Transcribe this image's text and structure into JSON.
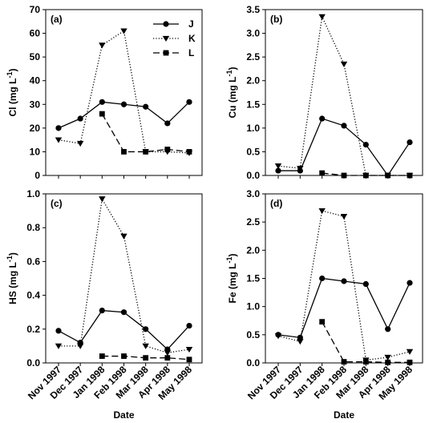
{
  "chart_data": [
    {
      "type": "line",
      "panel_label": "(a)",
      "ylabel_main": "Cl (mg L",
      "ylabel_sup": "-1",
      "ylabel_end": ")",
      "xlabel": "",
      "ylim": [
        0,
        70
      ],
      "yticks": [
        0,
        10,
        20,
        30,
        40,
        50,
        60,
        70
      ],
      "ytick_labels": [
        "0",
        "10",
        "20",
        "30",
        "40",
        "50",
        "60",
        "70"
      ],
      "show_xtick_labels": false,
      "legend": true,
      "legend_position": "top-right",
      "categories": [
        "Nov 1997",
        "Dec 1997",
        "Jan 1998",
        "Feb 1998",
        "Mar 1998",
        "Apr 1998",
        "May 1998"
      ],
      "series": [
        {
          "name": "J",
          "marker": "circle",
          "style": "solid",
          "values": [
            20,
            24,
            31,
            30,
            29,
            22,
            31
          ]
        },
        {
          "name": "K",
          "marker": "triangle-down",
          "style": "dotted",
          "values": [
            15,
            13.5,
            55,
            61,
            10,
            10,
            9.5
          ]
        },
        {
          "name": "L",
          "marker": "square",
          "style": "dashed",
          "values": [
            null,
            null,
            26,
            10,
            10,
            11,
            10
          ]
        }
      ]
    },
    {
      "type": "line",
      "panel_label": "(b)",
      "ylabel_main": "Cu (mg L",
      "ylabel_sup": "-1",
      "ylabel_end": ")",
      "xlabel": "",
      "ylim": [
        0,
        3.5
      ],
      "yticks": [
        0,
        0.5,
        1.0,
        1.5,
        2.0,
        2.5,
        3.0,
        3.5
      ],
      "ytick_labels": [
        "0.0",
        "0.5",
        "1.0",
        "1.5",
        "2.0",
        "2.5",
        "3.0",
        "3.5"
      ],
      "show_xtick_labels": false,
      "legend": false,
      "categories": [
        "Nov 1997",
        "Dec 1997",
        "Jan 1998",
        "Feb 1998",
        "Mar 1998",
        "Apr 1998",
        "May 1998"
      ],
      "series": [
        {
          "name": "J",
          "marker": "circle",
          "style": "solid",
          "values": [
            0.1,
            0.1,
            1.2,
            1.05,
            0.65,
            0.0,
            0.7
          ]
        },
        {
          "name": "K",
          "marker": "triangle-down",
          "style": "dotted",
          "values": [
            0.2,
            0.15,
            3.35,
            2.35,
            0.0,
            0.0,
            0.0
          ]
        },
        {
          "name": "L",
          "marker": "square",
          "style": "dashed",
          "values": [
            null,
            null,
            0.05,
            0.0,
            0.0,
            0.0,
            0.0
          ]
        }
      ]
    },
    {
      "type": "line",
      "panel_label": "(c)",
      "ylabel_main": "HS (mg L",
      "ylabel_sup": "-1",
      "ylabel_end": ")",
      "xlabel": "Date",
      "ylim": [
        0,
        1.0
      ],
      "yticks": [
        0,
        0.2,
        0.4,
        0.6,
        0.8,
        1.0
      ],
      "ytick_labels": [
        "0.0",
        "0.2",
        "0.4",
        "0.6",
        "0.8",
        "1.0"
      ],
      "show_xtick_labels": true,
      "legend": false,
      "categories": [
        "Nov 1997",
        "Dec 1997",
        "Jan 1998",
        "Feb 1998",
        "Mar 1998",
        "Apr 1998",
        "May 1998"
      ],
      "series": [
        {
          "name": "J",
          "marker": "circle",
          "style": "solid",
          "values": [
            0.19,
            0.12,
            0.31,
            0.3,
            0.2,
            0.08,
            0.22
          ]
        },
        {
          "name": "K",
          "marker": "triangle-down",
          "style": "dotted",
          "values": [
            0.1,
            0.1,
            0.97,
            0.75,
            0.1,
            0.06,
            0.08
          ]
        },
        {
          "name": "L",
          "marker": "square",
          "style": "dashed",
          "values": [
            null,
            null,
            0.04,
            0.04,
            0.03,
            0.03,
            0.02
          ]
        }
      ]
    },
    {
      "type": "line",
      "panel_label": "(d)",
      "ylabel_main": "Fe (mg L",
      "ylabel_sup": "-1",
      "ylabel_end": ")",
      "xlabel": "Date",
      "ylim": [
        0,
        3.0
      ],
      "yticks": [
        0,
        0.5,
        1.0,
        1.5,
        2.0,
        2.5,
        3.0
      ],
      "ytick_labels": [
        "0.0",
        "0.5",
        "1.0",
        "1.5",
        "2.0",
        "2.5",
        "3.0"
      ],
      "show_xtick_labels": true,
      "legend": false,
      "categories": [
        "Nov 1997",
        "Dec 1997",
        "Jan 1998",
        "Feb 1998",
        "Mar 1998",
        "Apr 1998",
        "May 1998"
      ],
      "series": [
        {
          "name": "J",
          "marker": "circle",
          "style": "solid",
          "values": [
            0.5,
            0.45,
            1.5,
            1.45,
            1.4,
            0.6,
            1.42
          ]
        },
        {
          "name": "K",
          "marker": "triangle-down",
          "style": "dotted",
          "values": [
            0.48,
            0.38,
            2.7,
            2.6,
            0.05,
            0.1,
            0.2
          ]
        },
        {
          "name": "L",
          "marker": "square",
          "style": "dashed",
          "values": [
            null,
            null,
            0.73,
            0.02,
            0.02,
            0.01,
            0.01
          ]
        }
      ]
    }
  ]
}
